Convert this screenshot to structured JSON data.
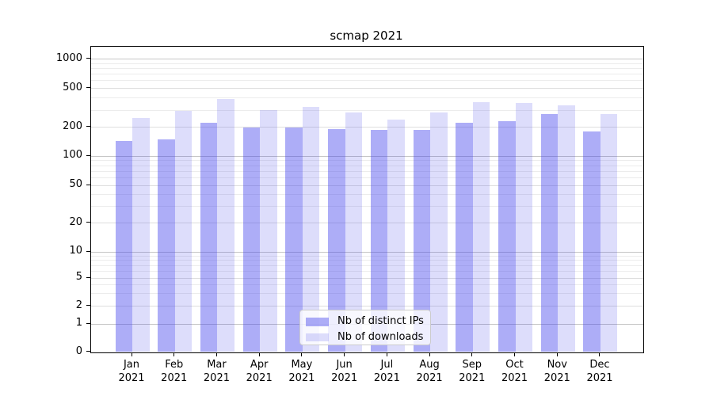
{
  "title": "scmap 2021",
  "chart_data": {
    "type": "bar",
    "categories": [
      "Jan",
      "Feb",
      "Mar",
      "Apr",
      "May",
      "Jun",
      "Jul",
      "Aug",
      "Sep",
      "Oct",
      "Nov",
      "Dec"
    ],
    "category_year": "2021",
    "series": [
      {
        "name": "Nb of distinct IPs",
        "color": "#adadf5",
        "fill_rgba": "rgba(60,60,235,0.42)",
        "values": [
          143,
          150,
          224,
          198,
          197,
          193,
          187,
          187,
          221,
          231,
          272,
          181
        ]
      },
      {
        "name": "Nb of downloads",
        "color": "#ddddfb",
        "fill_rgba": "rgba(55,55,230,0.17)",
        "values": [
          249,
          295,
          392,
          300,
          323,
          285,
          240,
          284,
          364,
          353,
          338,
          275
        ]
      }
    ],
    "yscale": "symlog",
    "yticks": [
      0,
      1,
      2,
      5,
      10,
      20,
      50,
      100,
      200,
      500,
      1000
    ],
    "ylim": [
      0,
      1270
    ],
    "xlabel": "",
    "ylabel": "",
    "grid": "both",
    "legend_position": "lower-center"
  },
  "legend": {
    "entries": [
      "Nb of distinct IPs",
      "Nb of downloads"
    ]
  }
}
